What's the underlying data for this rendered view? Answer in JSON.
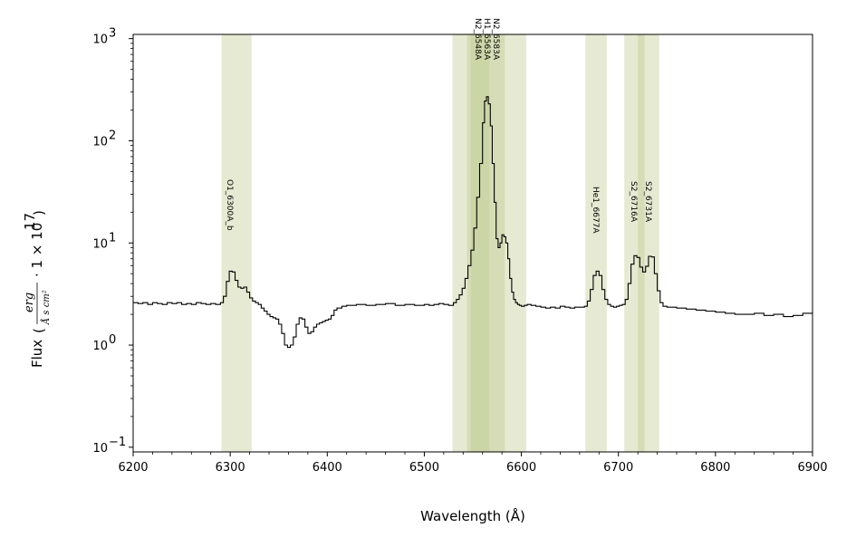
{
  "chart_data": {
    "type": "line",
    "style": "step",
    "xlabel": "Wavelength (Å)",
    "ylabel": {
      "prefix": "Flux",
      "unit_numerator": "erg",
      "unit_denominator": "Å s cm²",
      "scale_prefix": "· 1 × 10",
      "scale_exponent": "17"
    },
    "xlim": [
      6200,
      6900
    ],
    "ylim": [
      0.09,
      1100
    ],
    "yscale": "log",
    "xticks": [
      6200,
      6300,
      6400,
      6500,
      6600,
      6700,
      6800,
      6900
    ],
    "yticks": [
      {
        "value": 0.1,
        "base": "10",
        "exp": "−1"
      },
      {
        "value": 1,
        "base": "10",
        "exp": "0"
      },
      {
        "value": 10,
        "base": "10",
        "exp": "1"
      },
      {
        "value": 100,
        "base": "10",
        "exp": "2"
      },
      {
        "value": 1000,
        "base": "10",
        "exp": "3"
      }
    ],
    "grid": false,
    "band_color": "#bcc98a",
    "line_color": "#000000",
    "bands": [
      {
        "x0": 6291,
        "x1": 6322
      },
      {
        "x0": 6529,
        "x1": 6567
      },
      {
        "x0": 6544,
        "x1": 6583
      },
      {
        "x0": 6548,
        "x1": 6605
      },
      {
        "x0": 6666,
        "x1": 6688
      },
      {
        "x0": 6706,
        "x1": 6727
      },
      {
        "x0": 6720,
        "x1": 6742
      }
    ],
    "line_labels": [
      {
        "text": "O1_6300A_b",
        "x": 6300
      },
      {
        "text": "N2_6548A",
        "x": 6548
      },
      {
        "text": "H1_6563A",
        "x": 6563
      },
      {
        "text": "N2_6583A",
        "x": 6583
      },
      {
        "text": "He1_6677A",
        "x": 6677
      },
      {
        "text": "S2_6716A",
        "x": 6716
      },
      {
        "text": "S2_6731A",
        "x": 6731
      }
    ],
    "series": [
      {
        "x": [
          6200,
          6205,
          6210,
          6215,
          6220,
          6225,
          6230,
          6235,
          6240,
          6245,
          6250,
          6255,
          6260,
          6265,
          6270,
          6275,
          6280,
          6285,
          6290,
          6293,
          6296,
          6299,
          6302,
          6305,
          6308,
          6311,
          6314,
          6317,
          6320,
          6323,
          6326,
          6329,
          6332,
          6335,
          6338,
          6341,
          6344,
          6347,
          6350,
          6353,
          6356,
          6359,
          6362,
          6365,
          6368,
          6371,
          6374,
          6377,
          6380,
          6383,
          6386,
          6389,
          6392,
          6395,
          6398,
          6401,
          6404,
          6407,
          6410,
          6415,
          6420,
          6430,
          6440,
          6450,
          6460,
          6470,
          6480,
          6490,
          6500,
          6505,
          6510,
          6515,
          6520,
          6525,
          6530,
          6533,
          6536,
          6539,
          6542,
          6545,
          6548,
          6551,
          6554,
          6557,
          6560,
          6562,
          6564,
          6566,
          6568,
          6570,
          6572,
          6574,
          6576,
          6578,
          6580,
          6582,
          6584,
          6586,
          6588,
          6590,
          6592,
          6594,
          6596,
          6598,
          6600,
          6603,
          6606,
          6610,
          6615,
          6620,
          6625,
          6630,
          6635,
          6640,
          6645,
          6650,
          6655,
          6660,
          6665,
          6668,
          6671,
          6674,
          6677,
          6680,
          6683,
          6686,
          6689,
          6692,
          6695,
          6698,
          6701,
          6704,
          6707,
          6710,
          6713,
          6716,
          6719,
          6722,
          6725,
          6728,
          6731,
          6734,
          6737,
          6740,
          6743,
          6746,
          6750,
          6760,
          6770,
          6780,
          6790,
          6800,
          6810,
          6820,
          6830,
          6840,
          6850,
          6860,
          6870,
          6880,
          6890,
          6900
        ],
        "y": [
          2.6,
          2.55,
          2.6,
          2.5,
          2.6,
          2.55,
          2.5,
          2.6,
          2.55,
          2.6,
          2.5,
          2.55,
          2.5,
          2.6,
          2.55,
          2.5,
          2.55,
          2.5,
          2.6,
          3.0,
          4.2,
          5.3,
          5.2,
          4.3,
          3.7,
          3.6,
          3.7,
          3.3,
          2.9,
          2.7,
          2.6,
          2.5,
          2.3,
          2.15,
          2.0,
          1.9,
          1.85,
          1.8,
          1.6,
          1.3,
          1.0,
          0.95,
          1.0,
          1.2,
          1.6,
          1.85,
          1.8,
          1.5,
          1.3,
          1.35,
          1.5,
          1.6,
          1.65,
          1.7,
          1.75,
          1.8,
          1.95,
          2.2,
          2.3,
          2.4,
          2.45,
          2.5,
          2.45,
          2.5,
          2.55,
          2.45,
          2.5,
          2.45,
          2.5,
          2.45,
          2.5,
          2.55,
          2.5,
          2.45,
          2.6,
          2.8,
          3.1,
          3.6,
          4.5,
          6.0,
          8.5,
          14,
          28,
          60,
          150,
          245,
          270,
          230,
          140,
          60,
          25,
          11,
          9,
          10,
          12,
          11.5,
          10,
          7,
          4.5,
          3.3,
          2.8,
          2.6,
          2.5,
          2.45,
          2.4,
          2.45,
          2.5,
          2.45,
          2.4,
          2.35,
          2.3,
          2.35,
          2.3,
          2.4,
          2.35,
          2.3,
          2.35,
          2.35,
          2.4,
          2.7,
          3.5,
          4.8,
          5.3,
          4.8,
          3.5,
          2.8,
          2.5,
          2.4,
          2.35,
          2.4,
          2.45,
          2.5,
          2.8,
          4.0,
          6.2,
          7.5,
          7.2,
          5.8,
          5.2,
          5.9,
          7.4,
          7.3,
          5.0,
          3.4,
          2.6,
          2.4,
          2.35,
          2.3,
          2.25,
          2.2,
          2.15,
          2.1,
          2.05,
          2.0,
          2.0,
          2.05,
          1.95,
          2.0,
          1.9,
          1.95,
          2.05,
          2.1
        ]
      }
    ]
  }
}
